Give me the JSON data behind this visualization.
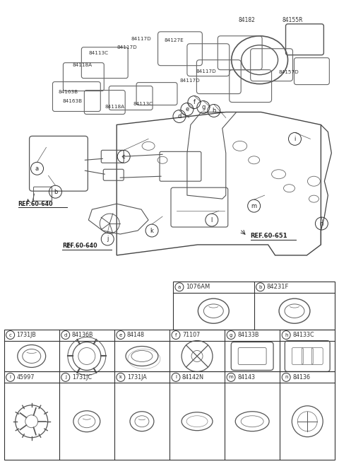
{
  "bg_color": "#ffffff",
  "fig_width": 4.8,
  "fig_height": 6.56,
  "dpi": 100,
  "parts_row1": [
    {
      "letter": "a",
      "part": "1076AM"
    },
    {
      "letter": "b",
      "part": "84231F"
    }
  ],
  "parts_row2": [
    {
      "letter": "c",
      "part": "1731JB"
    },
    {
      "letter": "d",
      "part": "84136B"
    },
    {
      "letter": "e",
      "part": "84148"
    },
    {
      "letter": "f",
      "part": "71107"
    },
    {
      "letter": "g",
      "part": "84133B"
    },
    {
      "letter": "h",
      "part": "84133C"
    }
  ],
  "parts_row3": [
    {
      "letter": "i",
      "part": "45997"
    },
    {
      "letter": "j",
      "part": "1731JC"
    },
    {
      "letter": "k",
      "part": "1731JA"
    },
    {
      "letter": "l",
      "part": "84142N"
    },
    {
      "letter": "m",
      "part": "84143"
    },
    {
      "letter": "n",
      "part": "84136"
    }
  ]
}
